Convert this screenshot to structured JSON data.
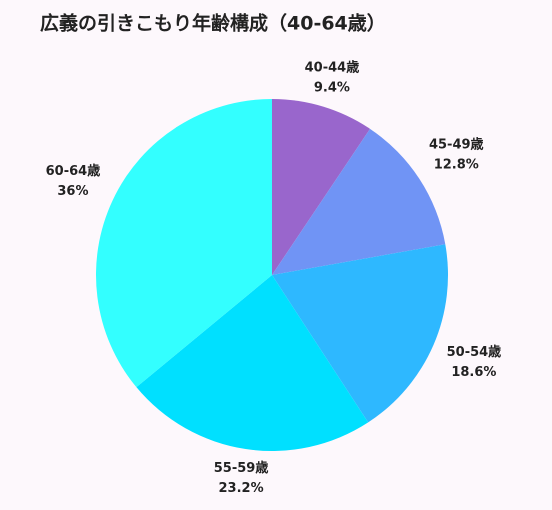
{
  "chart_data": {
    "type": "pie",
    "title": "広義の引きこもり年齢構成（40-64歳）",
    "categories": [
      "40-44歳",
      "45-49歳",
      "50-54歳",
      "55-59歳",
      "60-64歳"
    ],
    "values": [
      9.4,
      12.8,
      18.6,
      23.2,
      36
    ],
    "value_labels": [
      "9.4%",
      "12.8%",
      "18.6%",
      "23.2%",
      "36%"
    ],
    "colors": [
      "#9966cc",
      "#7094f5",
      "#2eb8ff",
      "#00e0ff",
      "#33ffff"
    ]
  }
}
